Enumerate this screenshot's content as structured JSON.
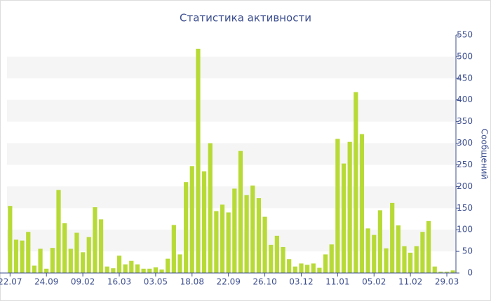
{
  "chart_data": {
    "type": "bar",
    "title": "Статистика активности",
    "y_label": "Сообщений",
    "categories": [
      "22.07",
      null,
      null,
      null,
      null,
      null,
      "24.09",
      null,
      null,
      null,
      null,
      null,
      "09.02",
      null,
      null,
      null,
      null,
      null,
      "16.03",
      null,
      null,
      null,
      null,
      null,
      "03.05",
      null,
      null,
      null,
      null,
      null,
      "18.08",
      null,
      null,
      null,
      null,
      null,
      "22.09",
      null,
      null,
      null,
      null,
      null,
      "26.10",
      null,
      null,
      null,
      null,
      null,
      "03.12",
      null,
      null,
      null,
      null,
      null,
      "11.01",
      null,
      null,
      null,
      null,
      null,
      "05.02",
      null,
      null,
      null,
      null,
      null,
      "11.02",
      null,
      null,
      null,
      null,
      null,
      "29.03",
      null
    ],
    "values": [
      155,
      77,
      75,
      95,
      17,
      56,
      10,
      58,
      192,
      115,
      56,
      93,
      48,
      83,
      152,
      124,
      15,
      11,
      40,
      20,
      28,
      20,
      10,
      10,
      13,
      8,
      33,
      111,
      43,
      210,
      247,
      518,
      235,
      300,
      143,
      158,
      140,
      195,
      282,
      180,
      202,
      173,
      130,
      65,
      86,
      60,
      32,
      15,
      22,
      19,
      22,
      12,
      43,
      66,
      310,
      253,
      303,
      418,
      321,
      103,
      88,
      145,
      57,
      162,
      110,
      62,
      47,
      62,
      95,
      120,
      15,
      3,
      3,
      6
    ],
    "color": "#b8da37",
    "ylim": [
      0,
      550
    ],
    "yticks": [
      0,
      50,
      100,
      150,
      200,
      250,
      300,
      350,
      400,
      450,
      500,
      550
    ],
    "y_axis_side": "right",
    "grid": "bands"
  }
}
